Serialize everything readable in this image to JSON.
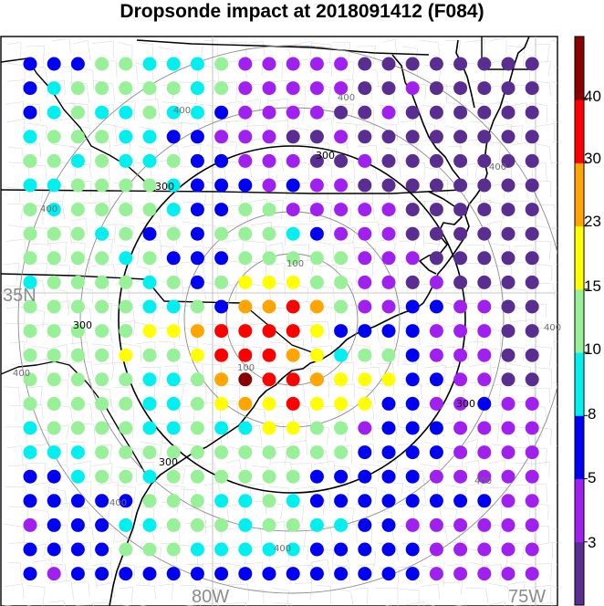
{
  "title": "Dropsonde impact at 2018091412 (F084)",
  "map": {
    "lat_label": "35N",
    "lon_labels": [
      "80W",
      "75W"
    ],
    "range_ring_labels": [
      "100",
      "100",
      "300",
      "300",
      "300",
      "300",
      "300",
      "400",
      "400",
      "400",
      "400",
      "400",
      "400",
      "400"
    ]
  },
  "colorbar": {
    "tick_labels": [
      "3",
      "5",
      "8",
      "10",
      "15",
      "23",
      "30",
      "40"
    ],
    "colors": [
      "#5a2d91",
      "#a020f0",
      "#0000f5",
      "#00f0f0",
      "#98f098",
      "#ffff00",
      "#ffa500",
      "#ff0000",
      "#8b0000"
    ]
  },
  "impact_grid": {
    "color_key": [
      "#5a2d91",
      "#a020f0",
      "#0000f5",
      "#00f0f0",
      "#98f098",
      "#ffff00",
      "#ffa500",
      "#ff0000",
      "#8b0000"
    ],
    "rows": [
      "2224433341111100000000",
      "2344444341111100100000",
      "2343343321111001000000",
      "3444332211100100000000",
      "4434334221110010000000",
      "3344443222121100000000",
      "4344443224411111000000",
      "4443424244432111000000",
      "4444342224444411100000",
      "3444434245554411010000",
      "4444433426676411221100",
      "4444455677775222211100",
      "4444544577765344211100",
      "4444433468776555221100",
      "4444433456575552211211",
      "3444433433554412221111",
      "3334444444444422221111",
      "2234434444442222211111",
      "2222244433432222222211",
      "1222334443443322111111",
      "2222444333332222211111",
      "2122222222222222211111"
    ]
  }
}
